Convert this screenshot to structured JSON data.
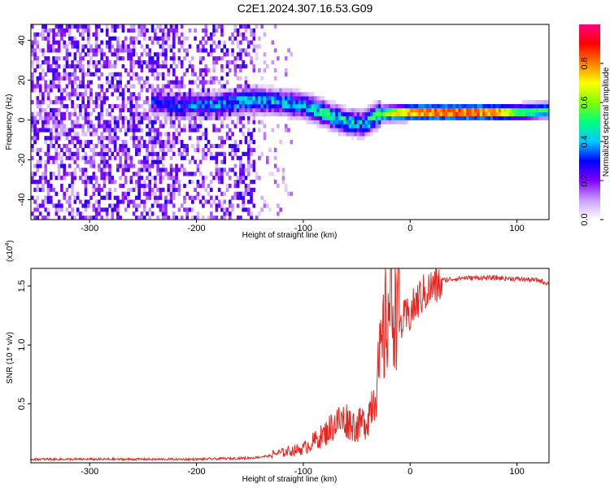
{
  "title": "C2E1.2024.307.16.53.G09",
  "chart_data": [
    {
      "type": "heatmap",
      "xlabel": "Height of straight line (km)",
      "ylabel": "Frequency (Hz)",
      "xlim": [
        -355,
        130
      ],
      "ylim": [
        -50,
        48
      ],
      "xticks": [
        -300,
        -200,
        -100,
        0,
        100
      ],
      "xtick_labels": [
        "-300",
        "-200",
        "-100",
        "0",
        "100"
      ],
      "yticks": [
        -40,
        -20,
        0,
        20,
        40
      ],
      "ytick_labels": [
        "-40",
        "-20",
        "0",
        "20",
        "40"
      ],
      "colorbar": {
        "label": "Normalized spectral amplitude",
        "range": [
          0,
          1
        ],
        "ticks": [
          0.0,
          0.2,
          0.4,
          0.6,
          0.8
        ],
        "tick_labels": [
          "0.0",
          "0.2",
          "0.4",
          "0.6",
          "0.8"
        ],
        "colors": [
          "#ffffff",
          "#c8a0ff",
          "#8000ff",
          "#0000ff",
          "#00c8ff",
          "#00ff80",
          "#80ff00",
          "#ffff00",
          "#ff8000",
          "#ff0000",
          "#ff0080"
        ]
      },
      "ridge": {
        "x": [
          -240,
          -220,
          -180,
          -150,
          -120,
          -100,
          -80,
          -60,
          -45,
          -30,
          0,
          50,
          80,
          100,
          130
        ],
        "y": [
          8,
          6,
          7,
          9,
          8,
          6,
          2,
          -2,
          -3,
          2,
          3,
          3,
          3,
          3,
          4
        ],
        "amplitude": [
          0.3,
          0.35,
          0.4,
          0.45,
          0.45,
          0.45,
          0.5,
          0.5,
          0.45,
          0.55,
          0.85,
          0.9,
          0.85,
          0.6,
          0.5
        ]
      },
      "grid": false
    },
    {
      "type": "line",
      "xlabel": "Height of straight line (km)",
      "ylabel": "SNR (10 * v/v)",
      "y_multiplier": "(x10",
      "y_multiplier_exp": "4",
      "y_multiplier_close": ")",
      "xlim": [
        -355,
        130
      ],
      "ylim": [
        0,
        1.65
      ],
      "xticks": [
        -300,
        -200,
        -100,
        0,
        100
      ],
      "xtick_labels": [
        "-300",
        "-200",
        "-100",
        "0",
        "100"
      ],
      "yticks": [
        0.5,
        1.0,
        1.5
      ],
      "ytick_labels": [
        "0.5",
        "1.0",
        "1.5"
      ],
      "series": [
        {
          "color": "#e8241f",
          "x": [
            -355,
            -300,
            -200,
            -150,
            -120,
            -100,
            -80,
            -70,
            -60,
            -50,
            -40,
            -30,
            -25,
            -20,
            -10,
            0,
            10,
            20,
            30,
            50,
            80,
            100,
            120,
            130
          ],
          "y": [
            0.03,
            0.03,
            0.03,
            0.04,
            0.07,
            0.1,
            0.2,
            0.28,
            0.3,
            0.25,
            0.3,
            0.6,
            0.85,
            1.1,
            1.2,
            1.3,
            1.45,
            1.52,
            1.55,
            1.57,
            1.57,
            1.56,
            1.55,
            1.52
          ]
        }
      ],
      "grid": false
    }
  ]
}
